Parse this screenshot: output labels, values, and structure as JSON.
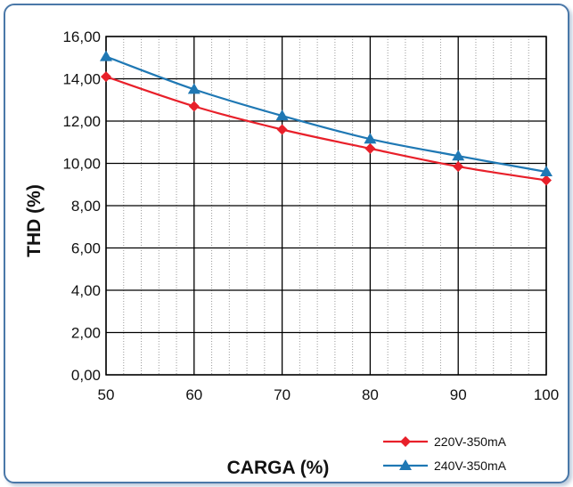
{
  "chart_data": {
    "type": "line",
    "title": "",
    "xlabel": "CARGA (%)",
    "ylabel": "THD (%)",
    "x": [
      50,
      60,
      70,
      80,
      90,
      100
    ],
    "xlim": [
      50,
      100
    ],
    "ylim": [
      0,
      16
    ],
    "x_ticks": [
      "50",
      "60",
      "70",
      "80",
      "90",
      "100"
    ],
    "y_ticks": [
      "0,00",
      "2,00",
      "4,00",
      "6,00",
      "8,00",
      "10,00",
      "12,00",
      "14,00",
      "16,00"
    ],
    "grid": true,
    "legend_position": "bottom-right",
    "series": [
      {
        "name": "220V-350mA",
        "marker": "diamond",
        "color": "#e8202a",
        "values": [
          14.1,
          12.7,
          11.6,
          10.7,
          9.85,
          9.2
        ]
      },
      {
        "name": "240V-350mA",
        "marker": "triangle",
        "color": "#1f78b4",
        "values": [
          15.05,
          13.5,
          12.25,
          11.15,
          10.35,
          9.6
        ]
      }
    ]
  }
}
